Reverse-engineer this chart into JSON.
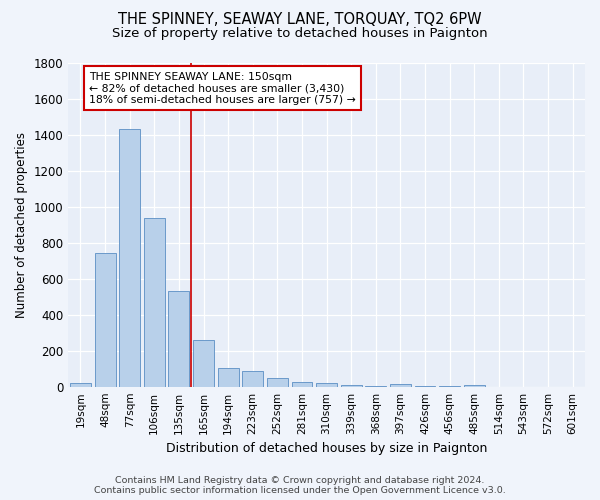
{
  "title": "THE SPINNEY, SEAWAY LANE, TORQUAY, TQ2 6PW",
  "subtitle": "Size of property relative to detached houses in Paignton",
  "xlabel": "Distribution of detached houses by size in Paignton",
  "ylabel": "Number of detached properties",
  "footer_line1": "Contains HM Land Registry data © Crown copyright and database right 2024.",
  "footer_line2": "Contains public sector information licensed under the Open Government Licence v3.0.",
  "bar_labels": [
    "19sqm",
    "48sqm",
    "77sqm",
    "106sqm",
    "135sqm",
    "165sqm",
    "194sqm",
    "223sqm",
    "252sqm",
    "281sqm",
    "310sqm",
    "339sqm",
    "368sqm",
    "397sqm",
    "426sqm",
    "456sqm",
    "485sqm",
    "514sqm",
    "543sqm",
    "572sqm",
    "601sqm"
  ],
  "bar_values": [
    20,
    740,
    1430,
    935,
    530,
    260,
    105,
    88,
    46,
    28,
    22,
    8,
    5,
    15,
    3,
    2,
    12,
    0,
    0,
    0,
    0
  ],
  "bar_color": "#b8d0ea",
  "bar_edge_color": "#5b8ec4",
  "annotation_line1": "THE SPINNEY SEAWAY LANE: 150sqm",
  "annotation_line2": "← 82% of detached houses are smaller (3,430)",
  "annotation_line3": "18% of semi-detached houses are larger (757) →",
  "annotation_box_color": "white",
  "annotation_box_edge_color": "#cc0000",
  "ylim": [
    0,
    1800
  ],
  "yticks": [
    0,
    200,
    400,
    600,
    800,
    1000,
    1200,
    1400,
    1600,
    1800
  ],
  "bg_color": "#f0f4fb",
  "plot_bg_color": "#e8eef8",
  "grid_color": "#ffffff",
  "ref_line_color": "#cc0000",
  "title_fontsize": 10.5,
  "subtitle_fontsize": 9.5,
  "footer_fontsize": 6.8,
  "ylabel_fontsize": 8.5,
  "xlabel_fontsize": 9
}
